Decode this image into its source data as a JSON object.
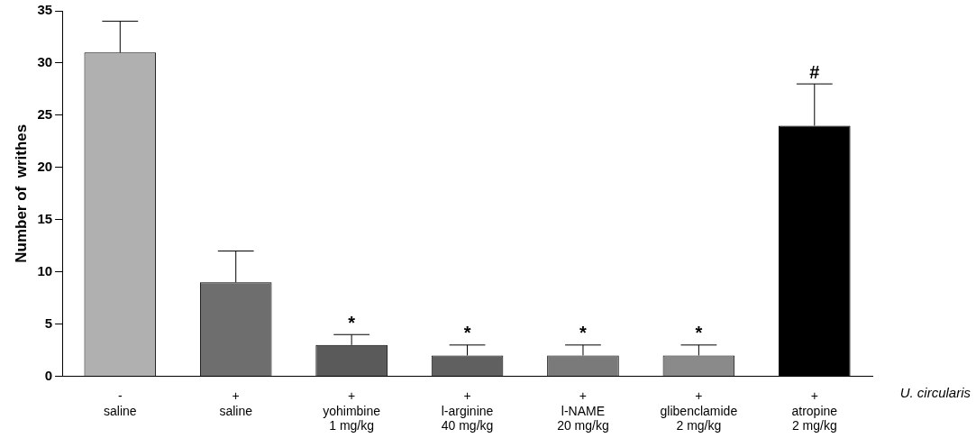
{
  "chart_data": {
    "type": "bar",
    "ylabel": "Number of  writhes",
    "categories": [
      "-\nsaline",
      "+\nsaline",
      "+\nyohimbine\n1 mg/kg",
      "+\nl-arginine\n40 mg/kg",
      "+\nl-NAME\n20 mg/kg",
      "+\nglibenclamide\n2 mg/kg",
      "+\natropine\n2 mg/kg"
    ],
    "values": [
      31,
      9,
      3,
      2,
      2,
      2,
      24
    ],
    "errors": [
      [
        31,
        34
      ],
      [
        9,
        12
      ],
      [
        3,
        4
      ],
      [
        2,
        3
      ],
      [
        2,
        3
      ],
      [
        2,
        3
      ],
      [
        24,
        28
      ]
    ],
    "colors": [
      "#b0b0b0",
      "#6e6e6e",
      "#5a5a5a",
      "#606060",
      "#7a7a7a",
      "#8a8a8a",
      "#000000"
    ],
    "ylim": [
      0,
      35
    ],
    "yticks": [
      0,
      5,
      10,
      15,
      20,
      25,
      30,
      35
    ],
    "grid": false,
    "legend": false,
    "annotations": [
      {
        "text": "*",
        "x": "+\nyohimbine\n1 mg/kg",
        "y": 4
      },
      {
        "text": "*",
        "x": "+\nl-arginine\n40 mg/kg",
        "y": 3
      },
      {
        "text": "*",
        "x": "+\nl-NAME\n20 mg/kg",
        "y": 3
      },
      {
        "text": "*",
        "x": "+\nglibenclamide\n2 mg/kg",
        "y": 3
      },
      {
        "text": "#",
        "x": "+\natropine\n2 mg/kg",
        "y": 28
      },
      "U. circularis"
    ]
  }
}
